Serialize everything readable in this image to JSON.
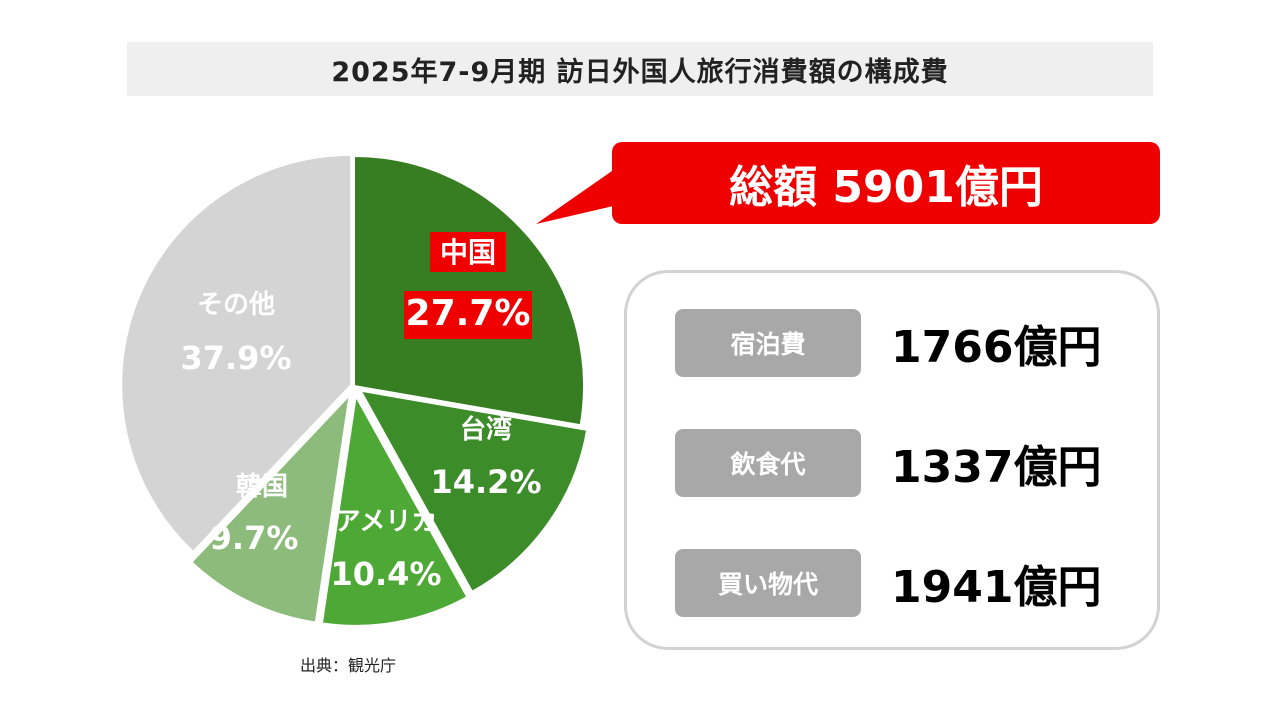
{
  "title": "2025年7-9月期 訪日外国人旅行消費額の構成費",
  "total_label": "総額 5901億円",
  "breakdown": [
    {
      "label": "宿泊費",
      "value": "1766億円"
    },
    {
      "label": "飲食代",
      "value": "1337億円"
    },
    {
      "label": "買い物代",
      "value": "1941億円"
    }
  ],
  "source": "出典：観光庁",
  "chart_data": {
    "type": "pie",
    "title": "2025年7-9月期 訪日外国人旅行消費額の構成費",
    "unit": "%",
    "slices": [
      {
        "name": "中国",
        "value": 27.7,
        "label": "27.7%",
        "color": "#377d22",
        "highlight": true
      },
      {
        "name": "台湾",
        "value": 14.2,
        "label": "14.2%",
        "color": "#3c8d2a"
      },
      {
        "name": "アメリカ",
        "value": 10.4,
        "label": "10.4%",
        "color": "#4da835"
      },
      {
        "name": "韓国",
        "value": 9.7,
        "label": "9.7%",
        "color": "#8dbb7c"
      },
      {
        "name": "その他",
        "value": 37.9,
        "label": "37.9%",
        "color": "#d4d4d4"
      }
    ],
    "highlight_color": "#ef0000",
    "legend": "none"
  }
}
